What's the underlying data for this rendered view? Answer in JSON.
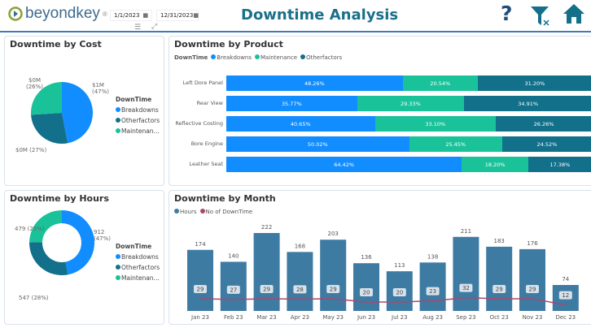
{
  "header": {
    "logo": "beyondkey",
    "start_date": "1/1/2023",
    "end_date": "12/31/2023",
    "title": "Downtime Analysis",
    "icons": [
      "help-icon",
      "clear-filter-icon",
      "home-icon"
    ]
  },
  "colors": {
    "breakdowns": "#118dff",
    "maintenance": "#1ac29a",
    "otherfactors": "#12708a",
    "hours": "#3e7ba3",
    "count": "#a8486e"
  },
  "cost": {
    "title": "Downtime by Cost",
    "legend_title": "DownTime",
    "legend": [
      "Breakdowns",
      "Otherfactors",
      "Maintenan..."
    ],
    "labels": {
      "breakdowns_value": "$1M",
      "breakdowns_pct": "(47%)",
      "otherfactors": "$0M (27%)",
      "maintenance_value": "$0M",
      "maintenance_pct": "(26%)"
    }
  },
  "hours": {
    "title": "Downtime by Hours",
    "legend_title": "DownTime",
    "legend": [
      "Breakdowns",
      "Otherfactors",
      "Maintenan..."
    ],
    "labels": {
      "breakdowns_value": "912",
      "breakdowns_pct": "(47%)",
      "otherfactors": "547 (28%)",
      "maintenance": "479 (25%)"
    }
  },
  "chart_data": [
    {
      "type": "pie",
      "title": "Downtime by Cost",
      "categories": [
        "Breakdowns",
        "Otherfactors",
        "Maintenance"
      ],
      "values": [
        47,
        27,
        26
      ],
      "unit": "%"
    },
    {
      "type": "pie",
      "title": "Downtime by Hours",
      "categories": [
        "Breakdowns",
        "Otherfactors",
        "Maintenance"
      ],
      "values": [
        912,
        547,
        479
      ],
      "percent": [
        47,
        28,
        25
      ]
    },
    {
      "type": "bar",
      "stacked": "100%",
      "orientation": "horizontal",
      "title": "Downtime by Product",
      "legend_title": "DownTime",
      "legend": [
        "Breakdowns",
        "Maintenance",
        "Otherfactors"
      ],
      "categories": [
        "Left Dore Panel",
        "Rear View",
        "Reflective Costing",
        "Bore Engine",
        "Leather Seat"
      ],
      "series": [
        {
          "name": "Breakdowns",
          "values": [
            "48.26%",
            "35.77%",
            "40.65%",
            "50.02%",
            "64.42%"
          ]
        },
        {
          "name": "Maintenance",
          "values": [
            "20.54%",
            "29.33%",
            "33.10%",
            "25.45%",
            "18.20%"
          ]
        },
        {
          "name": "Otherfactors",
          "values": [
            "31.20%",
            "34.91%",
            "26.26%",
            "24.52%",
            "17.38%"
          ]
        }
      ]
    },
    {
      "type": "bar",
      "title": "Downtime by Month",
      "legend": [
        "Hours",
        "No of DownTime"
      ],
      "categories": [
        "Jan 23",
        "Feb 23",
        "Mar 23",
        "Apr 23",
        "May 23",
        "Jun 23",
        "Jul 23",
        "Aug 23",
        "Sep 23",
        "Oct 23",
        "Nov 23",
        "Dec 23"
      ],
      "series": [
        {
          "name": "Hours",
          "type": "bar",
          "values": [
            174,
            140,
            222,
            168,
            203,
            136,
            113,
            138,
            211,
            183,
            176,
            74
          ]
        },
        {
          "name": "No of DownTime",
          "type": "line",
          "values": [
            29,
            27,
            29,
            28,
            29,
            20,
            20,
            23,
            32,
            29,
            29,
            12
          ]
        }
      ]
    }
  ]
}
